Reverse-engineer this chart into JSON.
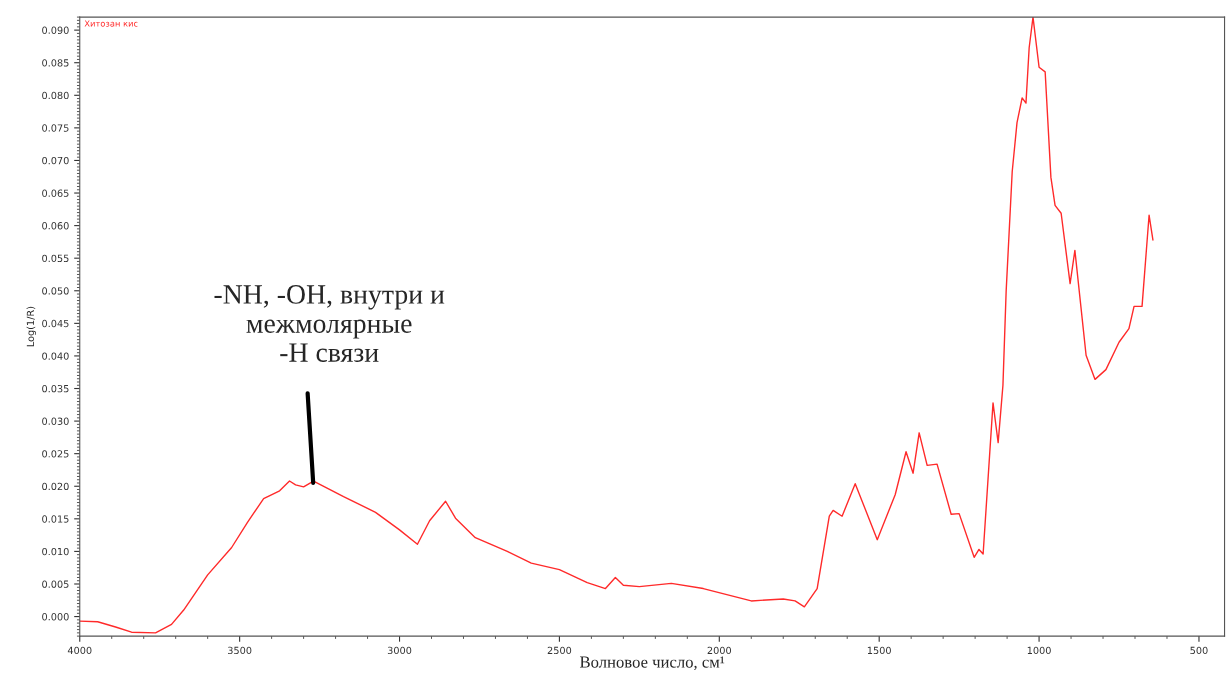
{
  "chart_data": {
    "type": "line",
    "xlabel": "Волновое число, см¹",
    "ylabel": "Log(1/R)",
    "x": [
      4000,
      3944,
      3888,
      3838,
      3763,
      3713,
      3675,
      3600,
      3525,
      3475,
      3425,
      3375,
      3344,
      3325,
      3300,
      3269,
      3175,
      3075,
      3000,
      2944,
      2906,
      2856,
      2825,
      2763,
      2663,
      2588,
      2500,
      2413,
      2375,
      2356,
      2325,
      2300,
      2250,
      2150,
      2050,
      1900,
      1800,
      1763,
      1734,
      1694,
      1656,
      1644,
      1616,
      1575,
      1506,
      1450,
      1416,
      1394,
      1375,
      1350,
      1319,
      1275,
      1250,
      1203,
      1188,
      1175,
      1144,
      1128,
      1113,
      1103,
      1084,
      1069,
      1053,
      1041,
      1031,
      1019,
      1000,
      981,
      963,
      950,
      931,
      903,
      888,
      853,
      825,
      791,
      750,
      719,
      703,
      678,
      656,
      644
    ],
    "series": [
      {
        "name": "Хитозан кис",
        "color": "#ff2a2a",
        "values": [
          -0.0007,
          -0.0008,
          -0.0016,
          -0.0024,
          -0.0025,
          -0.0012,
          0.001,
          0.0064,
          0.0106,
          0.0145,
          0.0181,
          0.0193,
          0.0208,
          0.0202,
          0.0199,
          0.0208,
          0.0184,
          0.016,
          0.0133,
          0.0111,
          0.0147,
          0.0177,
          0.0151,
          0.0121,
          0.01,
          0.0082,
          0.0072,
          0.0052,
          0.0046,
          0.0043,
          0.006,
          0.0048,
          0.0046,
          0.0051,
          0.0043,
          0.0024,
          0.0027,
          0.0024,
          0.0015,
          0.0043,
          0.0154,
          0.0163,
          0.0154,
          0.0204,
          0.0118,
          0.0187,
          0.0253,
          0.022,
          0.0282,
          0.0232,
          0.0234,
          0.0157,
          0.0158,
          0.0091,
          0.0103,
          0.0096,
          0.0328,
          0.0267,
          0.0355,
          0.0499,
          0.0683,
          0.0758,
          0.0796,
          0.0788,
          0.0873,
          0.092,
          0.0843,
          0.0836,
          0.0674,
          0.0631,
          0.0619,
          0.0511,
          0.0562,
          0.0401,
          0.0364,
          0.0379,
          0.0421,
          0.0442,
          0.0476,
          0.0476,
          0.0616,
          0.0578
        ]
      }
    ],
    "xlim": [
      4000,
      420
    ],
    "ylim": [
      -0.003,
      0.092
    ],
    "xticks": [
      4000,
      3500,
      3000,
      2500,
      2000,
      1500,
      1000,
      500
    ],
    "yticks": [
      {
        "value": 0,
        "label": "0.000"
      },
      {
        "value": 0.005,
        "label": "0.005"
      },
      {
        "value": 0.01,
        "label": "0.010"
      },
      {
        "value": 0.015,
        "label": "0.015"
      },
      {
        "value": 0.02,
        "label": "0.020"
      },
      {
        "value": 0.025,
        "label": "0.025"
      },
      {
        "value": 0.03,
        "label": "0.030"
      },
      {
        "value": 0.035,
        "label": "0.035"
      },
      {
        "value": 0.04,
        "label": "0.040"
      },
      {
        "value": 0.045,
        "label": "0.045"
      },
      {
        "value": 0.05,
        "label": "0.050"
      },
      {
        "value": 0.055,
        "label": "0.055"
      },
      {
        "value": 0.06,
        "label": "0.060"
      },
      {
        "value": 0.065,
        "label": "0.065"
      },
      {
        "value": 0.07,
        "label": "0.070"
      },
      {
        "value": 0.075,
        "label": "0.075"
      },
      {
        "value": 0.08,
        "label": "0.080"
      },
      {
        "value": 0.085,
        "label": "0.085"
      },
      {
        "value": 0.09,
        "label": "0.090"
      }
    ],
    "annotations": [
      {
        "text": "-NH, -OH, внутри и\nмежмолярные\n-H связи",
        "x": 3270,
        "y": 0.0205
      }
    ],
    "grid": false,
    "legend": false,
    "marker": "none",
    "line_style": "solid"
  }
}
